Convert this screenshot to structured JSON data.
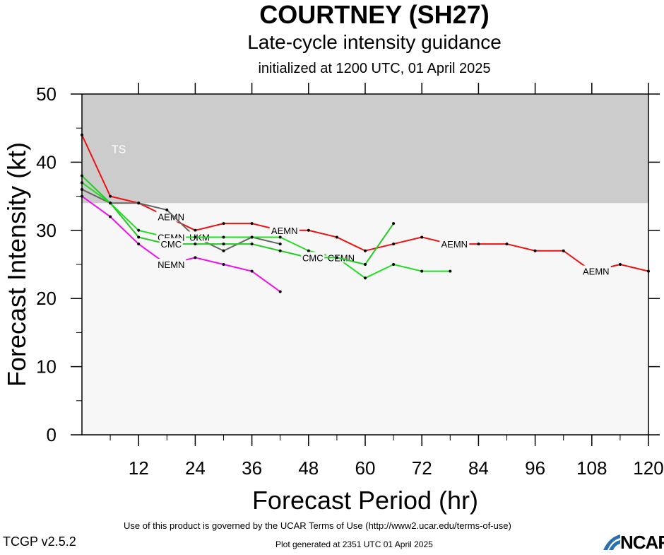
{
  "header": {
    "title": "COURTNEY (SH27)",
    "subtitle": "Late-cycle intensity guidance",
    "initialized": "initialized at 1200 UTC, 01 April 2025"
  },
  "footer": {
    "terms": "Use of this product is governed by the UCAR Terms of Use (http://www2.ucar.edu/terms-of-use)",
    "generated": "Plot generated at 2351 UTC   01 April 2025",
    "version": "TCGP v2.5.2",
    "logo": "NCAR"
  },
  "colors": {
    "ts_band": "#cccccc",
    "plot_bg": "#f7f7f7",
    "AEMN": "#ee1111",
    "UKM": "#666666",
    "CEMN": "#22dd22",
    "CMC": "#22cc22",
    "NEMN": "#ee11ee"
  },
  "chart_data": {
    "type": "line",
    "xlabel": "Forecast Period (hr)",
    "ylabel": "Forecast Intensity (kt)",
    "xlim": [
      0,
      120
    ],
    "ylim": [
      0,
      50
    ],
    "xticks": [
      12,
      24,
      36,
      48,
      60,
      72,
      84,
      96,
      108,
      120
    ],
    "yticks": [
      0,
      10,
      20,
      30,
      40,
      50
    ],
    "bands": [
      {
        "label": "TS",
        "from": 34,
        "to": 50
      }
    ],
    "series": [
      {
        "name": "AEMN",
        "x": [
          0,
          6,
          12,
          18,
          24,
          30,
          36,
          42,
          48,
          54,
          60,
          66,
          72,
          78,
          84,
          90,
          96,
          102,
          108,
          114,
          120
        ],
        "y": [
          44,
          35,
          34,
          32,
          30,
          31,
          31,
          30,
          30,
          29,
          27,
          28,
          29,
          28,
          28,
          28,
          27,
          27,
          24,
          25,
          24
        ],
        "labels": [
          {
            "x": 18,
            "y": 32
          },
          {
            "x": 42,
            "y": 30
          },
          {
            "x": 78,
            "y": 28
          },
          {
            "x": 108,
            "y": 24
          }
        ]
      },
      {
        "name": "UKM",
        "x": [
          0,
          6,
          12,
          18,
          24,
          30,
          36,
          42
        ],
        "y": [
          36,
          34,
          34,
          33,
          29,
          27,
          29,
          28
        ],
        "labels": [
          {
            "x": 24,
            "y": 29
          }
        ]
      },
      {
        "name": "CEMN",
        "x": [
          0,
          6,
          12,
          18,
          24,
          30,
          36,
          42,
          48,
          54,
          60,
          66,
          72,
          78
        ],
        "y": [
          37,
          34,
          30,
          29,
          29,
          29,
          29,
          29,
          27,
          26,
          23,
          25,
          24,
          24
        ],
        "labels": [
          {
            "x": 18,
            "y": 29
          },
          {
            "x": 54,
            "y": 26
          }
        ]
      },
      {
        "name": "CMC",
        "x": [
          0,
          6,
          12,
          18,
          24,
          30,
          36,
          42,
          48,
          54,
          60,
          66
        ],
        "y": [
          38,
          34,
          29,
          28,
          28,
          28,
          28,
          27,
          26,
          26,
          25,
          31
        ],
        "labels": [
          {
            "x": 18,
            "y": 28
          },
          {
            "x": 48,
            "y": 26
          }
        ]
      },
      {
        "name": "NEMN",
        "x": [
          0,
          6,
          12,
          18,
          24,
          30,
          36,
          42
        ],
        "y": [
          35,
          32,
          28,
          25,
          26,
          25,
          24,
          21
        ],
        "labels": [
          {
            "x": 18,
            "y": 25
          }
        ]
      }
    ]
  }
}
